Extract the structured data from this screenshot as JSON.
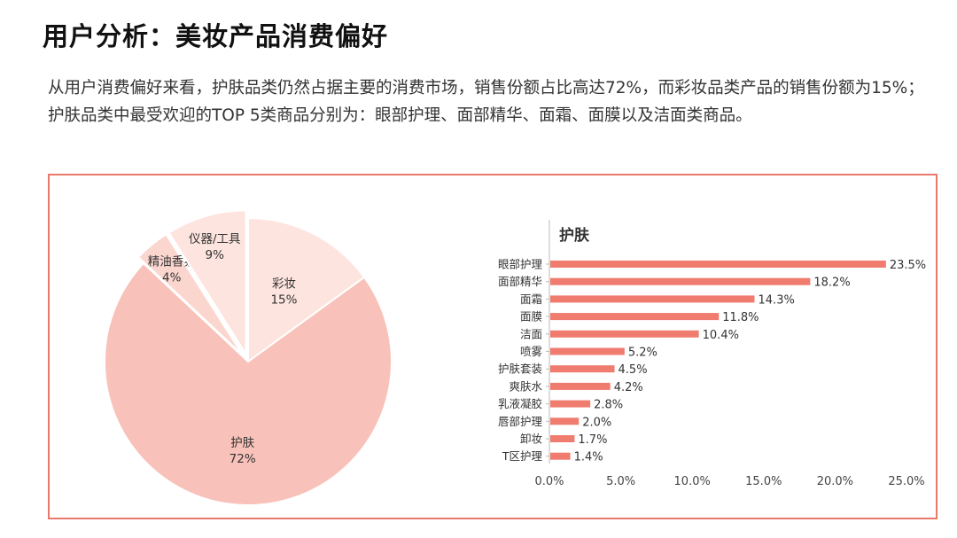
{
  "header": {
    "title": "用户分析：美妆产品消费偏好"
  },
  "description": {
    "line1": "从用户消费偏好来看，护肤品类仍然占据主要的消费市场，销售份额占比高达72%，而彩妆品类产品的销售份额为15%；",
    "line2": "护肤品类中最受欢迎的TOP 5类商品分别为：眼部护理、面部精华、面霜、面膜以及洁面类商品。"
  },
  "colors": {
    "border": "#e8796b",
    "bar": "#ef7c6e",
    "pie_skin": "#f8c1b9",
    "pie_makeup": "#fde4df",
    "pie_oil": "#fbd6cf",
    "pie_tools": "#fde4df"
  },
  "chart_data": [
    {
      "type": "pie",
      "labels": [
        "护肤",
        "彩妆",
        "仪器/工具",
        "精油香氛"
      ],
      "values": [
        72,
        15,
        9,
        4
      ],
      "value_labels": [
        "72%",
        "15%",
        "9%",
        "4%"
      ]
    },
    {
      "type": "bar",
      "orientation": "horizontal",
      "title": "护肤",
      "categories": [
        "眼部护理",
        "面部精华",
        "面霜",
        "面膜",
        "洁面",
        "喷雾",
        "护肤套装",
        "爽肤水",
        "乳液凝胶",
        "唇部护理",
        "卸妆",
        "T区护理"
      ],
      "values": [
        23.5,
        18.2,
        14.3,
        11.8,
        10.4,
        5.2,
        4.5,
        4.2,
        2.8,
        2.0,
        1.7,
        1.4
      ],
      "value_labels": [
        "23.5%",
        "18.2%",
        "14.3%",
        "11.8%",
        "10.4%",
        "5.2%",
        "4.5%",
        "4.2%",
        "2.8%",
        "2.0%",
        "1.7%",
        "1.4%"
      ],
      "xlim": [
        0,
        25
      ],
      "xticks": [
        "0.0%",
        "5.0%",
        "10.0%",
        "15.0%",
        "20.0%",
        "25.0%"
      ],
      "xlabel": "",
      "ylabel": ""
    }
  ]
}
